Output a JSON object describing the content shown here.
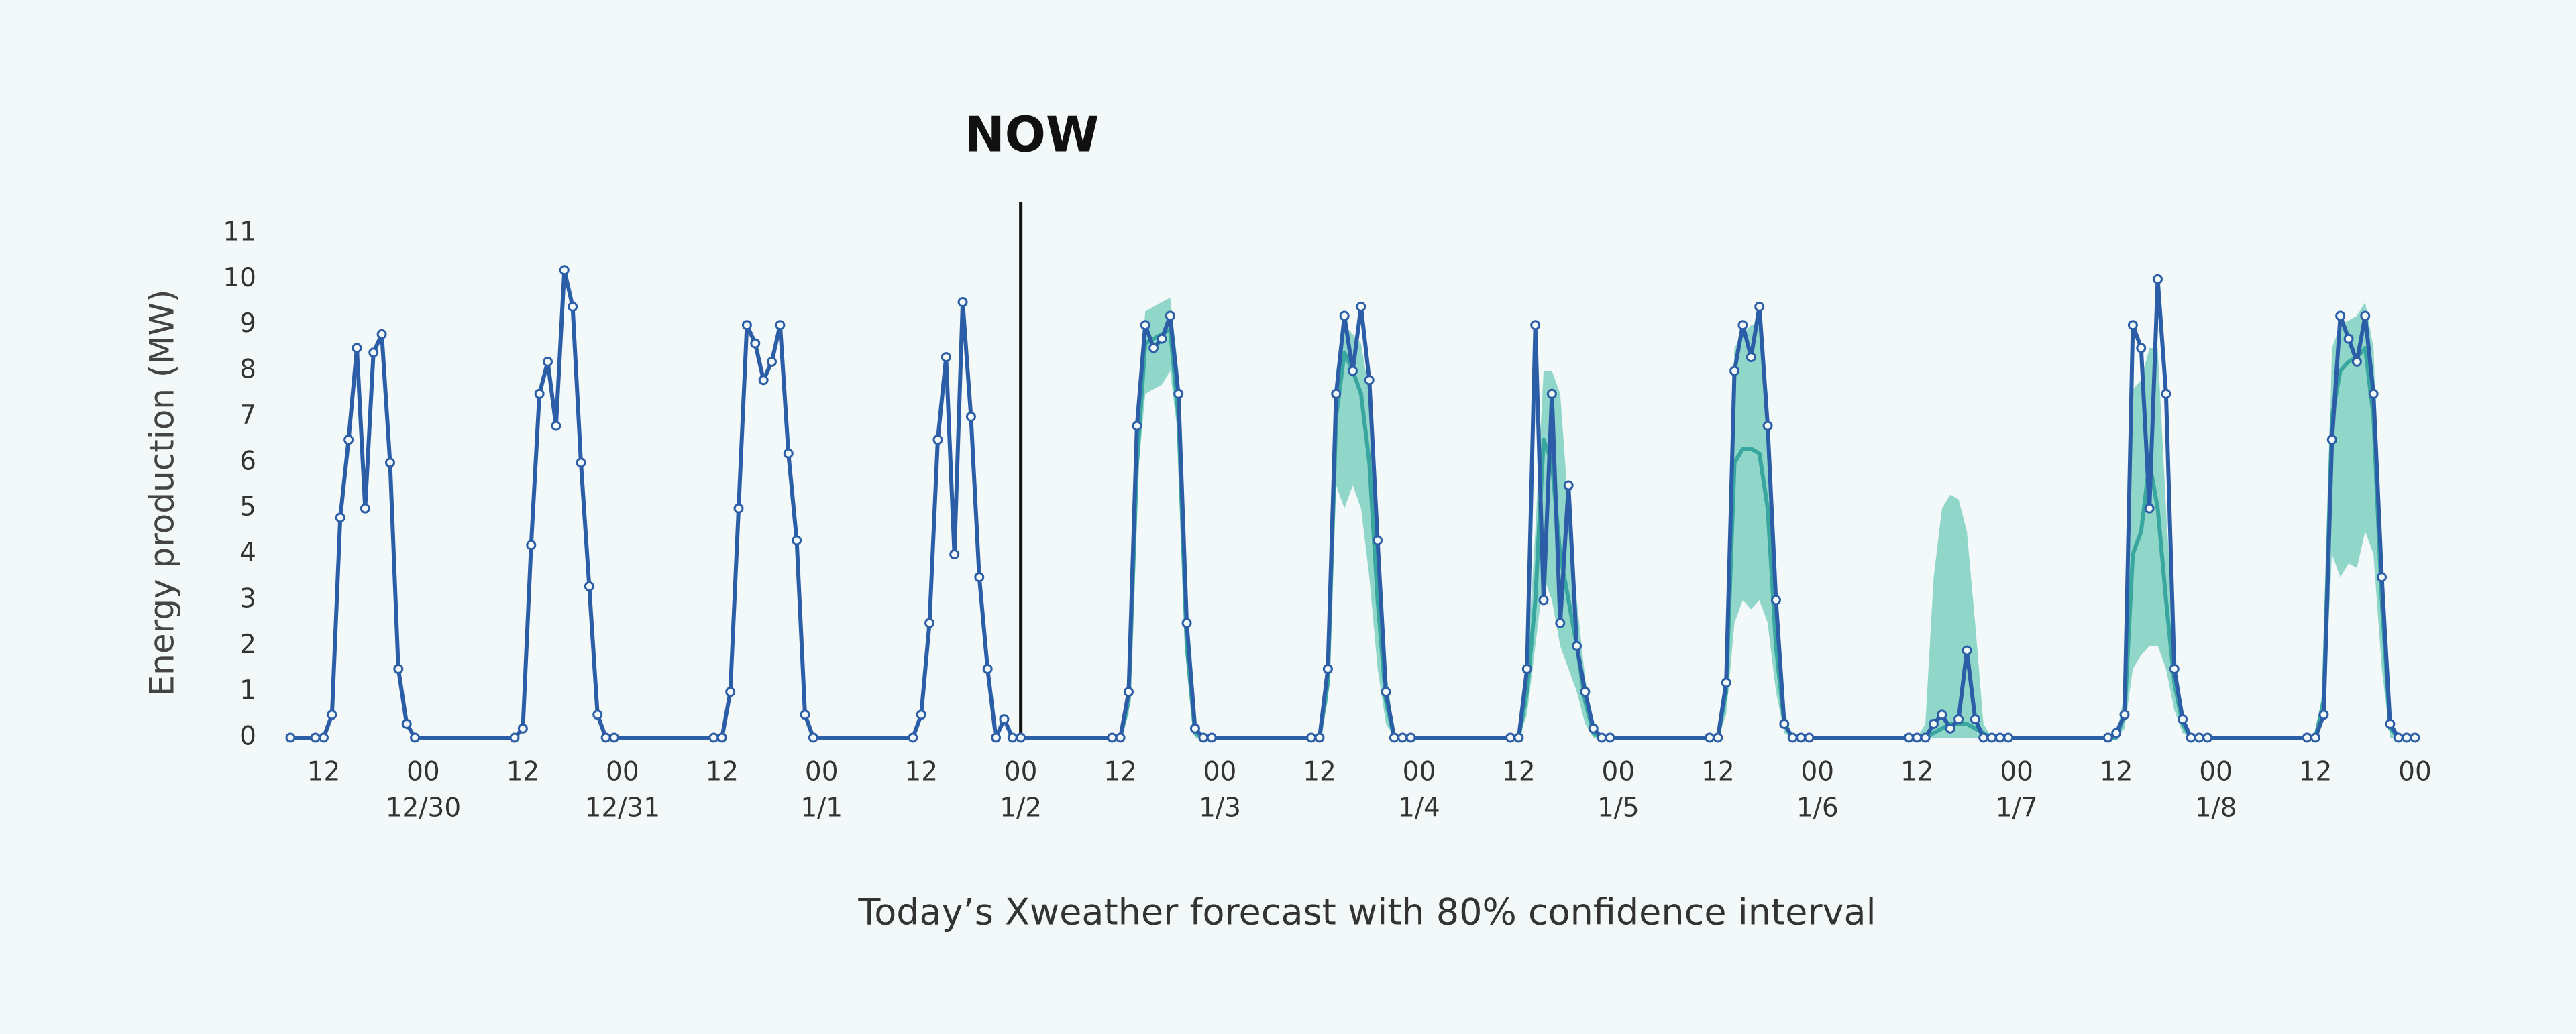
{
  "chart_data": {
    "type": "line",
    "ylabel": "Energy production (MW)",
    "caption": "Today’s Xweather forecast with 80% confidence interval",
    "now": {
      "label": "NOW",
      "x": 72
    },
    "xlim": [
      -16,
      240
    ],
    "ylim": [
      0,
      11
    ],
    "yticks": [
      0,
      1,
      2,
      3,
      4,
      5,
      6,
      7,
      8,
      9,
      10,
      11
    ],
    "grid": false,
    "xticks": [
      {
        "value": -12,
        "label": "12"
      },
      {
        "value": 0,
        "label": "00"
      },
      {
        "value": 12,
        "label": "12"
      },
      {
        "value": 24,
        "label": "00"
      },
      {
        "value": 36,
        "label": "12"
      },
      {
        "value": 48,
        "label": "00"
      },
      {
        "value": 60,
        "label": "12"
      },
      {
        "value": 72,
        "label": "00"
      },
      {
        "value": 84,
        "label": "12"
      },
      {
        "value": 96,
        "label": "00"
      },
      {
        "value": 108,
        "label": "12"
      },
      {
        "value": 120,
        "label": "00"
      },
      {
        "value": 132,
        "label": "12"
      },
      {
        "value": 144,
        "label": "00"
      },
      {
        "value": 156,
        "label": "12"
      },
      {
        "value": 168,
        "label": "00"
      },
      {
        "value": 180,
        "label": "12"
      },
      {
        "value": 192,
        "label": "00"
      },
      {
        "value": 204,
        "label": "12"
      },
      {
        "value": 216,
        "label": "00"
      },
      {
        "value": 228,
        "label": "12"
      },
      {
        "value": 240,
        "label": "00"
      }
    ],
    "xdate_labels": [
      {
        "value": 0,
        "label": "12/30"
      },
      {
        "value": 24,
        "label": "12/31"
      },
      {
        "value": 48,
        "label": "1/1"
      },
      {
        "value": 72,
        "label": "1/2"
      },
      {
        "value": 96,
        "label": "1/3"
      },
      {
        "value": 120,
        "label": "1/4"
      },
      {
        "value": 144,
        "label": "1/5"
      },
      {
        "value": 168,
        "label": "1/6"
      },
      {
        "value": 192,
        "label": "1/7"
      },
      {
        "value": 216,
        "label": "1/8"
      }
    ],
    "x": [
      -16,
      -13,
      -12,
      -11,
      -10,
      -9,
      -8,
      -7,
      -6,
      -5,
      -4,
      -3,
      -2,
      -1,
      11,
      12,
      13,
      14,
      15,
      16,
      17,
      18,
      19,
      20,
      21,
      22,
      23,
      35,
      36,
      37,
      38,
      39,
      40,
      41,
      42,
      43,
      44,
      45,
      46,
      47,
      59,
      60,
      61,
      62,
      63,
      64,
      65,
      66,
      67,
      68,
      69,
      70,
      71,
      72,
      83,
      84,
      85,
      86,
      87,
      88,
      89,
      90,
      91,
      92,
      93,
      94,
      95,
      107,
      108,
      109,
      110,
      111,
      112,
      113,
      114,
      115,
      116,
      117,
      118,
      119,
      131,
      132,
      133,
      134,
      135,
      136,
      137,
      138,
      139,
      140,
      141,
      142,
      143,
      155,
      156,
      157,
      158,
      159,
      160,
      161,
      162,
      163,
      164,
      165,
      166,
      167,
      179,
      180,
      181,
      182,
      183,
      184,
      185,
      186,
      187,
      188,
      189,
      190,
      191,
      203,
      204,
      205,
      206,
      207,
      208,
      209,
      210,
      211,
      212,
      213,
      214,
      215,
      227,
      228,
      229,
      230,
      231,
      232,
      233,
      234,
      235,
      236,
      237,
      238,
      239,
      240
    ],
    "band": {
      "color": "#7fd1c1",
      "low": [
        null,
        null,
        null,
        null,
        null,
        null,
        null,
        null,
        null,
        null,
        null,
        null,
        null,
        null,
        null,
        null,
        null,
        null,
        null,
        null,
        null,
        null,
        null,
        null,
        null,
        null,
        null,
        null,
        null,
        null,
        null,
        null,
        null,
        null,
        null,
        null,
        null,
        null,
        null,
        null,
        null,
        null,
        null,
        null,
        null,
        null,
        null,
        null,
        null,
        null,
        null,
        null,
        null,
        0,
        0,
        0,
        0.5,
        5.5,
        7.5,
        7.6,
        7.7,
        8,
        6.5,
        1.5,
        0,
        0,
        0,
        0,
        0,
        0.8,
        5.5,
        5,
        5.5,
        5,
        3.5,
        1.5,
        0.3,
        0,
        0,
        0,
        0,
        0,
        0.5,
        2,
        3.5,
        3,
        2,
        1.5,
        1,
        0.3,
        0,
        0,
        0,
        0,
        0,
        0.5,
        2.5,
        3,
        2.8,
        3,
        2.5,
        1,
        0.1,
        0,
        0,
        0,
        0,
        0,
        0,
        0,
        0,
        0,
        0,
        0,
        0,
        0,
        0,
        0,
        0,
        0,
        0,
        0.2,
        1.5,
        1.8,
        2,
        2,
        1.5,
        0.6,
        0.1,
        0,
        0,
        0,
        0,
        0,
        0.4,
        4,
        3.5,
        3.8,
        3.7,
        4.5,
        4,
        1.5,
        0,
        0,
        0,
        0
      ],
      "high": [
        null,
        null,
        null,
        null,
        null,
        null,
        null,
        null,
        null,
        null,
        null,
        null,
        null,
        null,
        null,
        null,
        null,
        null,
        null,
        null,
        null,
        null,
        null,
        null,
        null,
        null,
        null,
        null,
        null,
        null,
        null,
        null,
        null,
        null,
        null,
        null,
        null,
        null,
        null,
        null,
        null,
        null,
        null,
        null,
        null,
        null,
        null,
        null,
        null,
        null,
        null,
        null,
        null,
        0,
        0,
        0,
        1.2,
        7,
        9.3,
        9.4,
        9.5,
        9.6,
        8,
        3,
        0.3,
        0,
        0,
        0,
        0,
        1.8,
        8,
        9,
        8.8,
        8.6,
        7.5,
        4.5,
        1.5,
        0.1,
        0,
        0,
        0,
        0,
        1.5,
        4.5,
        8,
        8,
        7.5,
        5,
        3,
        1.3,
        0.2,
        0,
        0,
        0,
        0,
        1.6,
        8.5,
        8.8,
        9,
        9,
        7.5,
        3,
        0.6,
        0,
        0,
        0,
        0,
        0,
        0.3,
        3.5,
        5,
        5.3,
        5.2,
        4.5,
        2.5,
        0.3,
        0,
        0,
        0,
        0,
        0,
        1,
        7.6,
        7.8,
        8.5,
        8.5,
        5,
        2,
        0.5,
        0,
        0,
        0,
        0,
        0,
        1.2,
        8.5,
        9,
        9.1,
        9.2,
        9.5,
        8.5,
        4,
        0.5,
        0,
        0,
        0
      ]
    },
    "series": [
      {
        "color": "#3aa6a0",
        "marker": false,
        "values": [
          null,
          null,
          null,
          null,
          null,
          null,
          null,
          null,
          null,
          null,
          null,
          null,
          null,
          null,
          null,
          null,
          null,
          null,
          null,
          null,
          null,
          null,
          null,
          null,
          null,
          null,
          null,
          null,
          null,
          null,
          null,
          null,
          null,
          null,
          null,
          null,
          null,
          null,
          null,
          null,
          null,
          null,
          null,
          null,
          null,
          null,
          null,
          null,
          null,
          null,
          null,
          null,
          null,
          0,
          0,
          0,
          0.8,
          6,
          8.6,
          8.7,
          8.8,
          8.9,
          7,
          2,
          0.1,
          0,
          0,
          0,
          0,
          1.2,
          7,
          8.4,
          8,
          7.5,
          6,
          3,
          0.8,
          0,
          0,
          0,
          0,
          0,
          1,
          3,
          6.5,
          6,
          4,
          3,
          2,
          0.8,
          0.1,
          0,
          0,
          0,
          0,
          1,
          6,
          6.3,
          6.3,
          6.2,
          5,
          2,
          0.3,
          0,
          0,
          0,
          0,
          0,
          0,
          0.1,
          0.2,
          0.3,
          0.3,
          0.3,
          0.2,
          0.1,
          0,
          0,
          0,
          0,
          0,
          0.5,
          4,
          4.5,
          6,
          5,
          3,
          1.2,
          0.3,
          0,
          0,
          0,
          0,
          0,
          0.8,
          7,
          8,
          8.2,
          8.3,
          8.5,
          7,
          3,
          0.2,
          0,
          0,
          0
        ]
      },
      {
        "color": "#2b5ea7",
        "marker": true,
        "values": [
          0,
          0,
          0,
          0.5,
          4.8,
          6.5,
          8.5,
          5,
          8.4,
          8.8,
          6,
          1.5,
          0.3,
          0,
          0,
          0.2,
          4.2,
          7.5,
          8.2,
          6.8,
          10.2,
          9.4,
          6,
          3.3,
          0.5,
          0,
          0,
          0,
          0,
          1,
          5,
          9,
          8.6,
          7.8,
          8.2,
          9,
          6.2,
          4.3,
          0.5,
          0,
          0,
          0.5,
          2.5,
          6.5,
          8.3,
          4,
          9.5,
          7,
          3.5,
          1.5,
          0,
          0.4,
          0,
          0,
          0,
          0,
          1,
          6.8,
          9,
          8.5,
          8.7,
          9.2,
          7.5,
          2.5,
          0.2,
          0,
          0,
          0,
          0,
          1.5,
          7.5,
          9.2,
          8,
          9.4,
          7.8,
          4.3,
          1,
          0,
          0,
          0,
          0,
          0,
          1.5,
          9,
          3,
          7.5,
          2.5,
          5.5,
          2,
          1,
          0.2,
          0,
          0,
          0,
          0,
          1.2,
          8,
          9,
          8.3,
          9.4,
          6.8,
          3,
          0.3,
          0,
          0,
          0,
          0,
          0,
          0,
          0.3,
          0.5,
          0.2,
          0.4,
          1.9,
          0.4,
          0,
          0,
          0,
          0,
          0,
          0.1,
          0.5,
          9,
          8.5,
          5,
          10,
          7.5,
          1.5,
          0.4,
          0,
          0,
          0,
          0,
          0,
          0.5,
          6.5,
          9.2,
          8.7,
          8.2,
          9.2,
          7.5,
          3.5,
          0.3,
          0,
          0,
          0
        ]
      }
    ]
  }
}
